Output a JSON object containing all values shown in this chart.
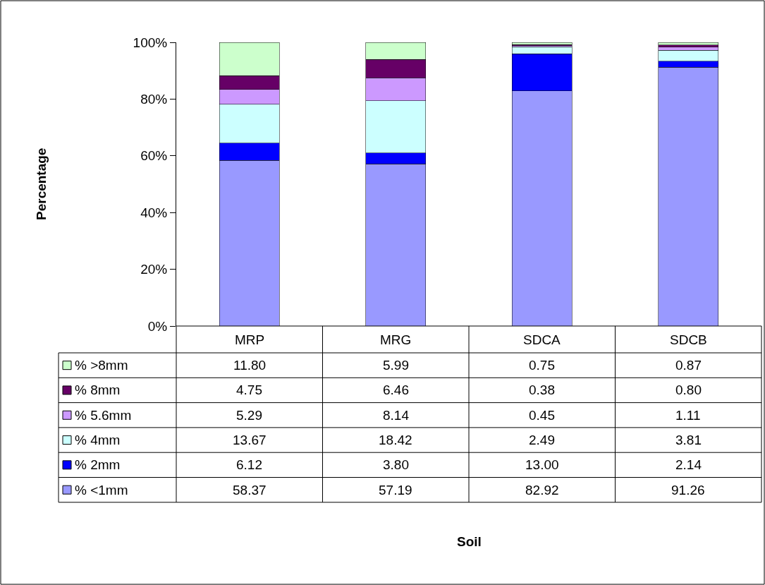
{
  "chart_data": {
    "type": "bar",
    "stacked": true,
    "annotations": [
      "Soil",
      "Percentage"
    ],
    "legend": "bottom left",
    "categories": [
      "MRP",
      "MRG",
      "SDCA",
      "SDCB"
    ],
    "yticks": [
      {
        "value": 0,
        "label": "0%"
      },
      {
        "value": 20,
        "label": "20%"
      },
      {
        "value": 40,
        "label": "40%"
      },
      {
        "value": 60,
        "label": "60%"
      },
      {
        "value": 80,
        "label": "80%"
      },
      {
        "value": 100,
        "label": "100%"
      }
    ],
    "series": [
      {
        "name": "% <1mm",
        "color": "#9999ff",
        "values": [
          58.37,
          57.19,
          82.92,
          91.26
        ],
        "value_labels": [
          "58.37",
          "57.19",
          "82.92",
          "91.26"
        ]
      },
      {
        "name": "% 2mm",
        "color": "#0000ff",
        "values": [
          6.12,
          3.8,
          13.0,
          2.14
        ],
        "value_labels": [
          "6.12",
          "3.80",
          "13.00",
          "2.14"
        ]
      },
      {
        "name": "% 4mm",
        "color": "#ccffff",
        "values": [
          13.67,
          18.42,
          2.49,
          3.81
        ],
        "value_labels": [
          "13.67",
          "18.42",
          "2.49",
          "3.81"
        ]
      },
      {
        "name": "% 5.6mm",
        "color": "#cc99ff",
        "values": [
          5.29,
          8.14,
          0.45,
          1.11
        ],
        "value_labels": [
          "5.29",
          "8.14",
          "0.45",
          "1.11"
        ]
      },
      {
        "name": "% 8mm",
        "color": "#660066",
        "values": [
          4.75,
          6.46,
          0.38,
          0.8
        ],
        "value_labels": [
          "4.75",
          "6.46",
          "0.38",
          "0.80"
        ]
      },
      {
        "name": "% >8mm",
        "color": "#ccffcc",
        "values": [
          11.8,
          5.99,
          0.75,
          0.87
        ],
        "value_labels": [
          "11.80",
          "5.99",
          "0.75",
          "0.87"
        ]
      }
    ],
    "ylim": [
      0,
      100
    ]
  }
}
